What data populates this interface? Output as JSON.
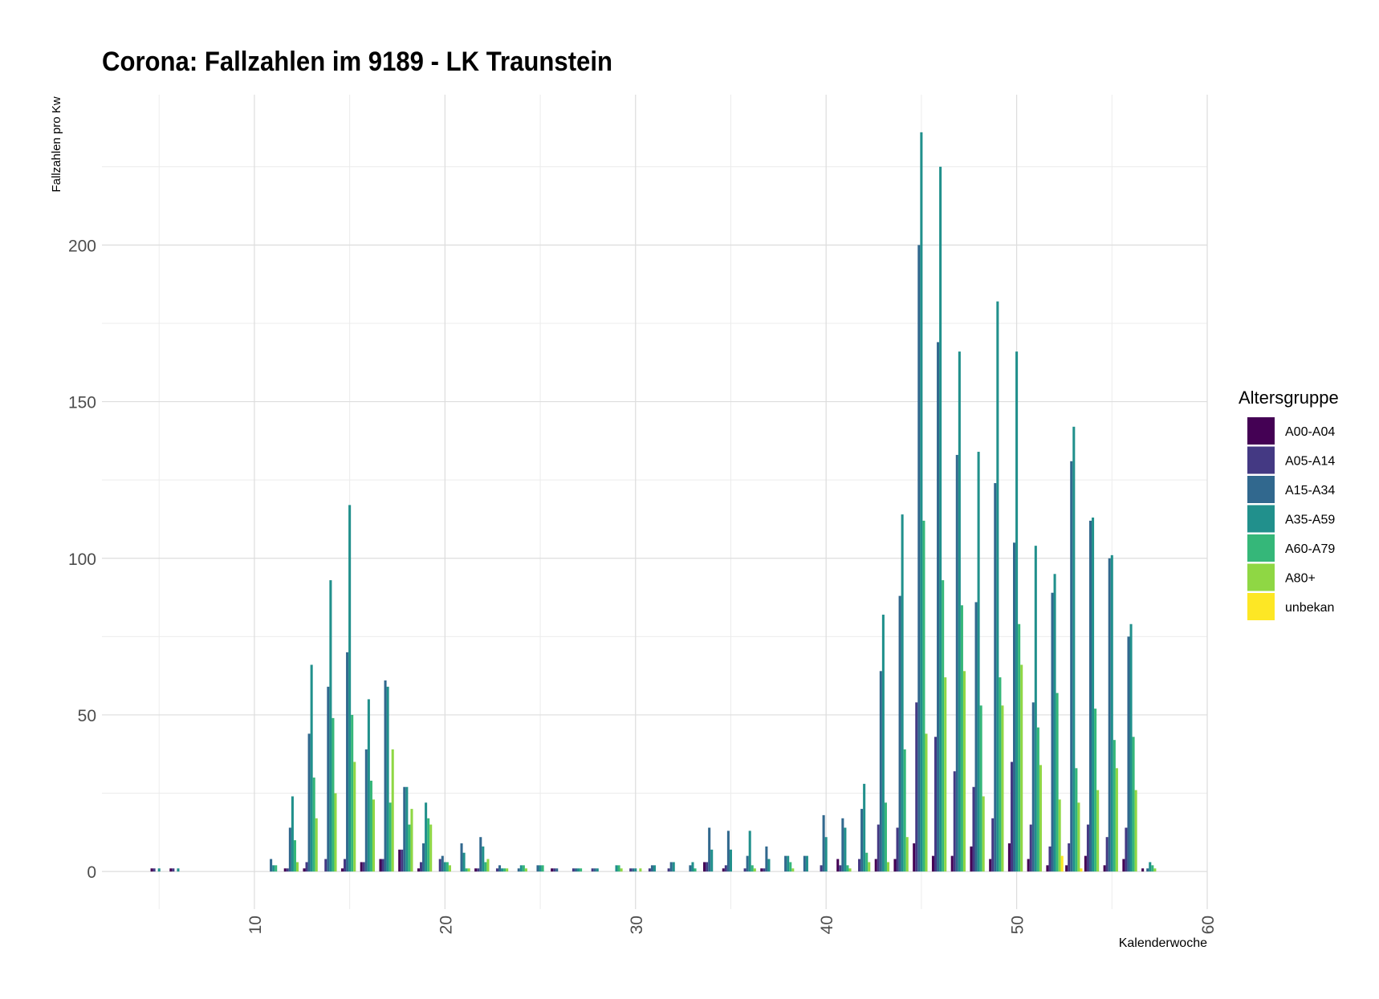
{
  "chart_data": {
    "type": "bar",
    "title": "Corona: Fallzahlen im 9189 - LK Traunstein",
    "xlabel": "Kalenderwoche",
    "ylabel": "Fallzahlen pro Kw",
    "xlim": [
      2,
      60
    ],
    "ylim": [
      -12,
      248
    ],
    "xticks": [
      10,
      20,
      30,
      40,
      50,
      60
    ],
    "yticks": [
      0,
      50,
      100,
      150,
      200
    ],
    "grid": true,
    "legend": {
      "title": "Altersgruppe",
      "position": "right"
    },
    "series": [
      {
        "name": "A00-A04",
        "color": "#440154",
        "values": [
          [
            5,
            1
          ],
          [
            6,
            1
          ],
          [
            12,
            1
          ],
          [
            13,
            1
          ],
          [
            15,
            1
          ],
          [
            16,
            3
          ],
          [
            17,
            4
          ],
          [
            18,
            7
          ],
          [
            19,
            1
          ],
          [
            22,
            1
          ],
          [
            26,
            1
          ],
          [
            34,
            3
          ],
          [
            35,
            1
          ],
          [
            37,
            1
          ],
          [
            41,
            4
          ],
          [
            43,
            4
          ],
          [
            44,
            4
          ],
          [
            45,
            9
          ],
          [
            46,
            5
          ],
          [
            47,
            5
          ],
          [
            48,
            8
          ],
          [
            49,
            4
          ],
          [
            50,
            9
          ],
          [
            51,
            4
          ],
          [
            52,
            2
          ],
          [
            53,
            2
          ],
          [
            54,
            5
          ],
          [
            55,
            2
          ],
          [
            56,
            4
          ],
          [
            57,
            1
          ]
        ]
      },
      {
        "name": "A05-A14",
        "color": "#443983",
        "values": [
          [
            5,
            1
          ],
          [
            6,
            1
          ],
          [
            12,
            1
          ],
          [
            13,
            3
          ],
          [
            14,
            4
          ],
          [
            15,
            4
          ],
          [
            16,
            3
          ],
          [
            17,
            4
          ],
          [
            18,
            7
          ],
          [
            19,
            3
          ],
          [
            20,
            4
          ],
          [
            22,
            1
          ],
          [
            23,
            1
          ],
          [
            26,
            1
          ],
          [
            27,
            1
          ],
          [
            28,
            1
          ],
          [
            30,
            1
          ],
          [
            31,
            1
          ],
          [
            32,
            1
          ],
          [
            34,
            3
          ],
          [
            35,
            2
          ],
          [
            36,
            1
          ],
          [
            37,
            1
          ],
          [
            40,
            2
          ],
          [
            41,
            2
          ],
          [
            42,
            4
          ],
          [
            43,
            15
          ],
          [
            44,
            14
          ],
          [
            45,
            54
          ],
          [
            46,
            43
          ],
          [
            47,
            32
          ],
          [
            48,
            27
          ],
          [
            49,
            17
          ],
          [
            50,
            35
          ],
          [
            51,
            15
          ],
          [
            52,
            8
          ],
          [
            53,
            9
          ],
          [
            54,
            15
          ],
          [
            55,
            11
          ],
          [
            56,
            14
          ]
        ]
      },
      {
        "name": "A15-A34",
        "color": "#31688E",
        "values": [
          [
            11,
            4
          ],
          [
            12,
            14
          ],
          [
            13,
            44
          ],
          [
            14,
            59
          ],
          [
            15,
            70
          ],
          [
            16,
            39
          ],
          [
            17,
            61
          ],
          [
            18,
            27
          ],
          [
            19,
            9
          ],
          [
            20,
            5
          ],
          [
            21,
            9
          ],
          [
            22,
            11
          ],
          [
            23,
            2
          ],
          [
            24,
            1
          ],
          [
            25,
            2
          ],
          [
            26,
            1
          ],
          [
            27,
            1
          ],
          [
            28,
            1
          ],
          [
            30,
            1
          ],
          [
            31,
            2
          ],
          [
            32,
            3
          ],
          [
            33,
            2
          ],
          [
            34,
            14
          ],
          [
            35,
            13
          ],
          [
            36,
            5
          ],
          [
            37,
            8
          ],
          [
            38,
            5
          ],
          [
            39,
            5
          ],
          [
            40,
            18
          ],
          [
            41,
            17
          ],
          [
            42,
            20
          ],
          [
            43,
            64
          ],
          [
            44,
            88
          ],
          [
            45,
            200
          ],
          [
            46,
            169
          ],
          [
            47,
            133
          ],
          [
            48,
            86
          ],
          [
            49,
            124
          ],
          [
            50,
            105
          ],
          [
            51,
            54
          ],
          [
            52,
            89
          ],
          [
            53,
            131
          ],
          [
            54,
            112
          ],
          [
            55,
            100
          ],
          [
            56,
            75
          ],
          [
            57,
            1
          ]
        ]
      },
      {
        "name": "A35-A59",
        "color": "#21908C",
        "values": [
          [
            5,
            1
          ],
          [
            6,
            1
          ],
          [
            11,
            2
          ],
          [
            12,
            24
          ],
          [
            13,
            66
          ],
          [
            14,
            93
          ],
          [
            15,
            117
          ],
          [
            16,
            55
          ],
          [
            17,
            59
          ],
          [
            18,
            27
          ],
          [
            19,
            22
          ],
          [
            20,
            3
          ],
          [
            21,
            6
          ],
          [
            22,
            8
          ],
          [
            23,
            1
          ],
          [
            24,
            2
          ],
          [
            25,
            2
          ],
          [
            27,
            1
          ],
          [
            28,
            1
          ],
          [
            29,
            2
          ],
          [
            30,
            1
          ],
          [
            31,
            2
          ],
          [
            32,
            3
          ],
          [
            33,
            3
          ],
          [
            34,
            7
          ],
          [
            35,
            7
          ],
          [
            36,
            13
          ],
          [
            37,
            4
          ],
          [
            38,
            5
          ],
          [
            39,
            5
          ],
          [
            40,
            11
          ],
          [
            41,
            14
          ],
          [
            42,
            28
          ],
          [
            43,
            82
          ],
          [
            44,
            114
          ],
          [
            45,
            236
          ],
          [
            46,
            225
          ],
          [
            47,
            166
          ],
          [
            48,
            134
          ],
          [
            49,
            182
          ],
          [
            50,
            166
          ],
          [
            51,
            104
          ],
          [
            52,
            95
          ],
          [
            53,
            142
          ],
          [
            54,
            113
          ],
          [
            55,
            101
          ],
          [
            56,
            79
          ],
          [
            57,
            3
          ]
        ]
      },
      {
        "name": "A60-A79",
        "color": "#35B779",
        "values": [
          [
            11,
            2
          ],
          [
            12,
            10
          ],
          [
            13,
            30
          ],
          [
            14,
            49
          ],
          [
            15,
            50
          ],
          [
            16,
            29
          ],
          [
            17,
            22
          ],
          [
            18,
            15
          ],
          [
            19,
            17
          ],
          [
            20,
            3
          ],
          [
            21,
            1
          ],
          [
            22,
            3
          ],
          [
            23,
            1
          ],
          [
            24,
            2
          ],
          [
            25,
            2
          ],
          [
            27,
            1
          ],
          [
            29,
            2
          ],
          [
            33,
            1
          ],
          [
            36,
            2
          ],
          [
            38,
            3
          ],
          [
            41,
            2
          ],
          [
            42,
            6
          ],
          [
            43,
            22
          ],
          [
            44,
            39
          ],
          [
            45,
            112
          ],
          [
            46,
            93
          ],
          [
            47,
            85
          ],
          [
            48,
            53
          ],
          [
            49,
            62
          ],
          [
            50,
            79
          ],
          [
            51,
            46
          ],
          [
            52,
            57
          ],
          [
            53,
            33
          ],
          [
            54,
            52
          ],
          [
            55,
            42
          ],
          [
            56,
            43
          ],
          [
            57,
            2
          ]
        ]
      },
      {
        "name": "A80+",
        "color": "#8FD744",
        "values": [
          [
            12,
            3
          ],
          [
            13,
            17
          ],
          [
            14,
            25
          ],
          [
            15,
            35
          ],
          [
            16,
            23
          ],
          [
            17,
            39
          ],
          [
            18,
            20
          ],
          [
            19,
            15
          ],
          [
            20,
            2
          ],
          [
            21,
            1
          ],
          [
            22,
            4
          ],
          [
            23,
            1
          ],
          [
            24,
            1
          ],
          [
            29,
            1
          ],
          [
            30,
            1
          ],
          [
            36,
            1
          ],
          [
            38,
            1
          ],
          [
            41,
            1
          ],
          [
            42,
            3
          ],
          [
            43,
            3
          ],
          [
            44,
            11
          ],
          [
            45,
            44
          ],
          [
            46,
            62
          ],
          [
            47,
            64
          ],
          [
            48,
            24
          ],
          [
            49,
            53
          ],
          [
            50,
            66
          ],
          [
            51,
            34
          ],
          [
            52,
            23
          ],
          [
            53,
            22
          ],
          [
            54,
            26
          ],
          [
            55,
            33
          ],
          [
            56,
            26
          ],
          [
            57,
            1
          ]
        ]
      },
      {
        "name": "unbekan",
        "color": "#FDE725",
        "values": [
          [
            52,
            5
          ],
          [
            53,
            1
          ]
        ]
      }
    ]
  }
}
